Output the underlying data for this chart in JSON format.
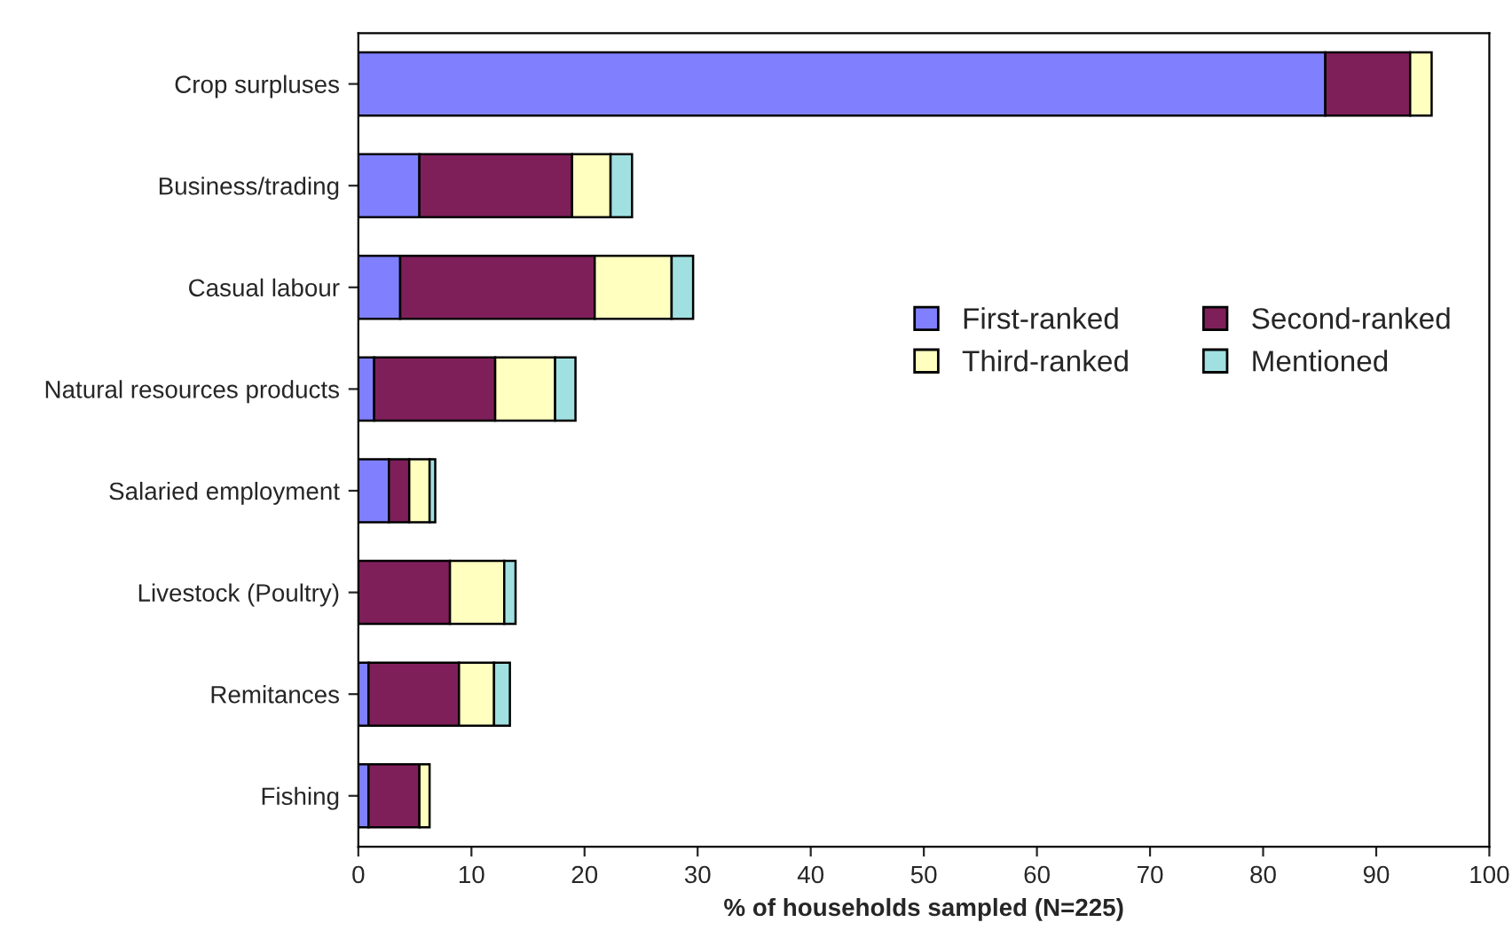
{
  "chart_data": {
    "type": "bar",
    "orientation": "horizontal",
    "stacked": true,
    "xlabel": "% of households sampled (N=225)",
    "categories": [
      "Crop surpluses",
      "Business/trading",
      "Casual labour",
      "Natural resources products",
      "Salaried employment",
      "Livestock (Poultry)",
      "Remitances",
      "Fishing"
    ],
    "series": [
      {
        "name": "First-ranked",
        "color": "#8080ff",
        "values": [
          85.5,
          5.4,
          3.7,
          1.4,
          2.7,
          null,
          0.9,
          0.9
        ]
      },
      {
        "name": "Second-ranked",
        "color": "#7f1f5a",
        "values": [
          7.5,
          13.5,
          17.2,
          10.7,
          1.8,
          8.1,
          8.0,
          4.5
        ]
      },
      {
        "name": "Third-ranked",
        "color": "#ffffc0",
        "values": [
          1.9,
          3.4,
          6.8,
          5.3,
          1.8,
          4.8,
          3.1,
          0.9
        ]
      },
      {
        "name": "Mentioned",
        "color": "#a0e0e0",
        "values": [
          null,
          1.9,
          1.9,
          1.8,
          0.5,
          1.0,
          1.4,
          null
        ]
      }
    ],
    "xlim": [
      0,
      100
    ],
    "xticks": [
      0,
      10,
      20,
      30,
      40,
      50,
      60,
      70,
      80,
      90,
      100
    ],
    "grid": false,
    "legend": "right"
  }
}
